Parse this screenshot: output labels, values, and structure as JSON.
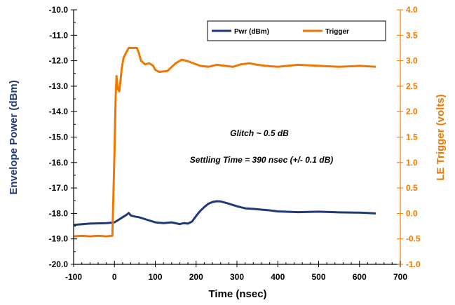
{
  "chart_data": {
    "type": "line",
    "xlabel": "Time (nsec)",
    "ylabel_left": "Envelope Power (dBm)",
    "ylabel_right": "LE Trigger (volts)",
    "xlim": [
      -100,
      700
    ],
    "ylim_left": [
      -20.0,
      -10.0
    ],
    "ylim_right": [
      -1.0,
      4.0
    ],
    "x_ticks": [
      "-100",
      "0",
      "100",
      "200",
      "300",
      "400",
      "500",
      "600",
      "700"
    ],
    "y_left_ticks": [
      "-20.0",
      "-19.0",
      "-18.0",
      "-17.0",
      "-16.0",
      "-15.0",
      "-14.0",
      "-13.0",
      "-12.0",
      "-11.0",
      "-10.0"
    ],
    "y_right_ticks": [
      "-1.0",
      "-0.5",
      "0.0",
      "0.5",
      "1.0",
      "1.5",
      "2.0",
      "2.5",
      "3.0",
      "3.5",
      "4.0"
    ],
    "grid": false,
    "legend_position": "top-right",
    "annotations": [
      "Glitch ~ 0.5 dB",
      "Settling Time = 390 nsec (+/- 0.1 dB)"
    ],
    "series": [
      {
        "name": "Pwr (dBm)",
        "axis": "left",
        "color": "#1f3a7a",
        "x": [
          -100,
          -60,
          -20,
          0,
          10,
          20,
          30,
          35,
          40,
          50,
          60,
          80,
          100,
          120,
          140,
          160,
          170,
          180,
          190,
          200,
          210,
          220,
          230,
          240,
          250,
          260,
          270,
          280,
          300,
          320,
          340,
          360,
          380,
          400,
          450,
          500,
          550,
          600,
          620,
          640
        ],
        "y": [
          -18.45,
          -18.4,
          -18.38,
          -18.35,
          -18.25,
          -18.15,
          -18.05,
          -17.98,
          -18.08,
          -18.12,
          -18.15,
          -18.25,
          -18.35,
          -18.38,
          -18.35,
          -18.42,
          -18.38,
          -18.4,
          -18.32,
          -18.1,
          -17.9,
          -17.75,
          -17.62,
          -17.55,
          -17.52,
          -17.53,
          -17.57,
          -17.62,
          -17.72,
          -17.8,
          -17.82,
          -17.85,
          -17.88,
          -17.92,
          -17.95,
          -17.93,
          -17.96,
          -17.97,
          -17.98,
          -18.0
        ]
      },
      {
        "name": "Trigger",
        "axis": "right",
        "color": "#f07800",
        "x": [
          -100,
          -80,
          -60,
          -40,
          -20,
          -5,
          0,
          3,
          5,
          8,
          12,
          18,
          22,
          28,
          35,
          45,
          55,
          60,
          65,
          75,
          85,
          95,
          100,
          110,
          130,
          150,
          165,
          175,
          190,
          210,
          230,
          250,
          270,
          290,
          310,
          330,
          350,
          370,
          400,
          450,
          500,
          550,
          600,
          640
        ],
        "y": [
          -0.45,
          -0.44,
          -0.45,
          -0.44,
          -0.45,
          -0.44,
          1.2,
          2.3,
          2.7,
          2.45,
          2.4,
          2.85,
          3.05,
          3.15,
          3.25,
          3.25,
          3.25,
          3.15,
          3.0,
          2.93,
          2.95,
          2.9,
          2.82,
          2.78,
          2.8,
          2.95,
          3.02,
          3.0,
          2.96,
          2.9,
          2.88,
          2.92,
          2.9,
          2.88,
          2.93,
          2.95,
          2.92,
          2.9,
          2.88,
          2.92,
          2.9,
          2.88,
          2.9,
          2.88
        ]
      }
    ]
  }
}
